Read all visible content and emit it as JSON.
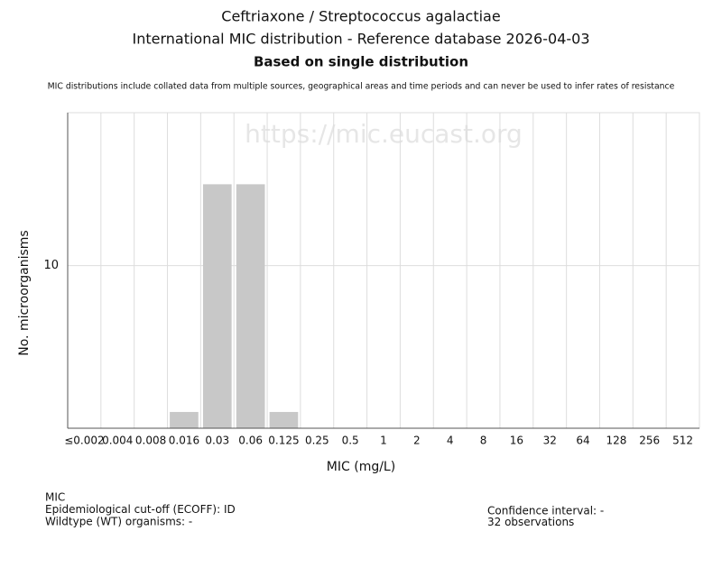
{
  "chart_data": {
    "type": "bar",
    "title": "Ceftriaxone / Streptococcus agalactiae",
    "subtitle": "International MIC distribution - Reference database 2026-04-03",
    "heading": "Based on single distribution",
    "note": "MIC distributions include collated data from multiple sources, geographical areas and time periods and can never be used to infer rates of resistance",
    "watermark": "https://mic.eucast.org",
    "x_label": "MIC (mg/L)",
    "y_label": "No. microorganisms",
    "categories": [
      "≤0.002",
      "0.004",
      "0.008",
      "0.016",
      "0.03",
      "0.06",
      "0.125",
      "0.25",
      "0.5",
      "1",
      "2",
      "4",
      "8",
      "16",
      "32",
      "64",
      "128",
      "256",
      "512"
    ],
    "values": [
      0,
      0,
      0,
      1,
      15,
      15,
      1,
      0,
      0,
      0,
      0,
      0,
      0,
      0,
      0,
      0,
      0,
      0,
      0
    ],
    "color": "#c8c8c8",
    "ylim": [
      0,
      19.4
    ],
    "yticks": [
      10
    ],
    "grid": true
  },
  "footer": {
    "left": [
      "MIC",
      "Epidemiological cut-off (ECOFF): ID",
      "Wildtype (WT) organisms:  -"
    ],
    "right": [
      "Confidence interval: -",
      "32 observations"
    ]
  }
}
